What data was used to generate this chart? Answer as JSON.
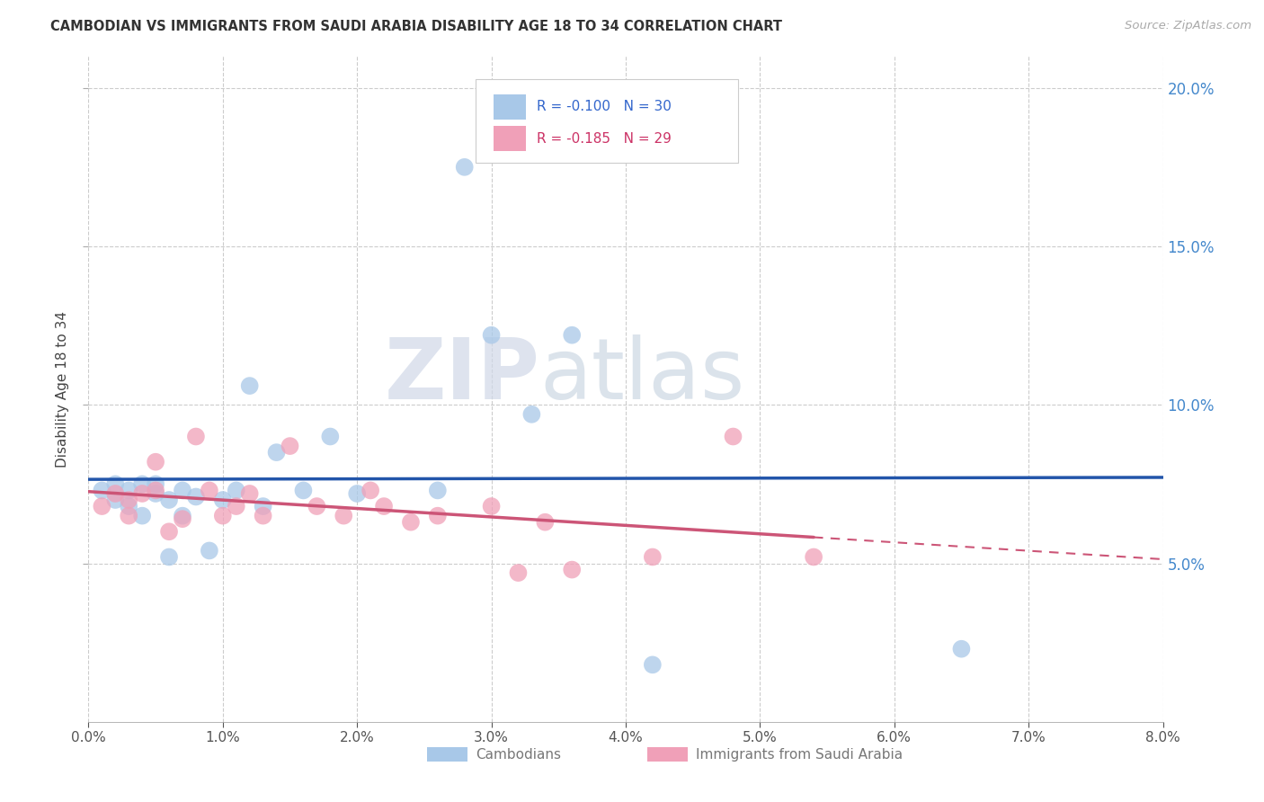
{
  "title": "CAMBODIAN VS IMMIGRANTS FROM SAUDI ARABIA DISABILITY AGE 18 TO 34 CORRELATION CHART",
  "source": "Source: ZipAtlas.com",
  "ylabel": "Disability Age 18 to 34",
  "xlim": [
    0.0,
    0.08
  ],
  "ylim": [
    0.0,
    0.21
  ],
  "yticks": [
    0.05,
    0.1,
    0.15,
    0.2
  ],
  "xticks": [
    0.0,
    0.01,
    0.02,
    0.03,
    0.04,
    0.05,
    0.06,
    0.07,
    0.08
  ],
  "xtick_labels": [
    "0.0%",
    "",
    "2.0%",
    "",
    "4.0%",
    "",
    "6.0%",
    "",
    "8.0%"
  ],
  "cambodian_color": "#a8c8e8",
  "saudi_color": "#f0a0b8",
  "cambodian_line_color": "#2255aa",
  "saudi_line_color": "#cc5577",
  "legend_R_cambodian": "-0.100",
  "legend_N_cambodian": "30",
  "legend_R_saudi": "-0.185",
  "legend_N_saudi": "29",
  "cambodian_x": [
    0.001,
    0.002,
    0.002,
    0.003,
    0.003,
    0.004,
    0.004,
    0.005,
    0.005,
    0.006,
    0.006,
    0.007,
    0.007,
    0.008,
    0.009,
    0.01,
    0.011,
    0.012,
    0.013,
    0.014,
    0.016,
    0.018,
    0.02,
    0.026,
    0.028,
    0.03,
    0.033,
    0.036,
    0.042,
    0.065
  ],
  "cambodian_y": [
    0.073,
    0.07,
    0.075,
    0.073,
    0.068,
    0.075,
    0.065,
    0.075,
    0.072,
    0.07,
    0.052,
    0.073,
    0.065,
    0.071,
    0.054,
    0.07,
    0.073,
    0.106,
    0.068,
    0.085,
    0.073,
    0.09,
    0.072,
    0.073,
    0.175,
    0.122,
    0.097,
    0.122,
    0.018,
    0.023
  ],
  "saudi_x": [
    0.001,
    0.002,
    0.003,
    0.003,
    0.004,
    0.005,
    0.005,
    0.006,
    0.007,
    0.008,
    0.009,
    0.01,
    0.011,
    0.012,
    0.013,
    0.015,
    0.017,
    0.019,
    0.021,
    0.022,
    0.024,
    0.026,
    0.03,
    0.032,
    0.034,
    0.036,
    0.042,
    0.048,
    0.054
  ],
  "saudi_y": [
    0.068,
    0.072,
    0.07,
    0.065,
    0.072,
    0.073,
    0.082,
    0.06,
    0.064,
    0.09,
    0.073,
    0.065,
    0.068,
    0.072,
    0.065,
    0.087,
    0.068,
    0.065,
    0.073,
    0.068,
    0.063,
    0.065,
    0.068,
    0.047,
    0.063,
    0.048,
    0.052,
    0.09,
    0.052
  ],
  "watermark_zip": "ZIP",
  "watermark_atlas": "atlas",
  "background_color": "#ffffff",
  "grid_color": "#cccccc"
}
